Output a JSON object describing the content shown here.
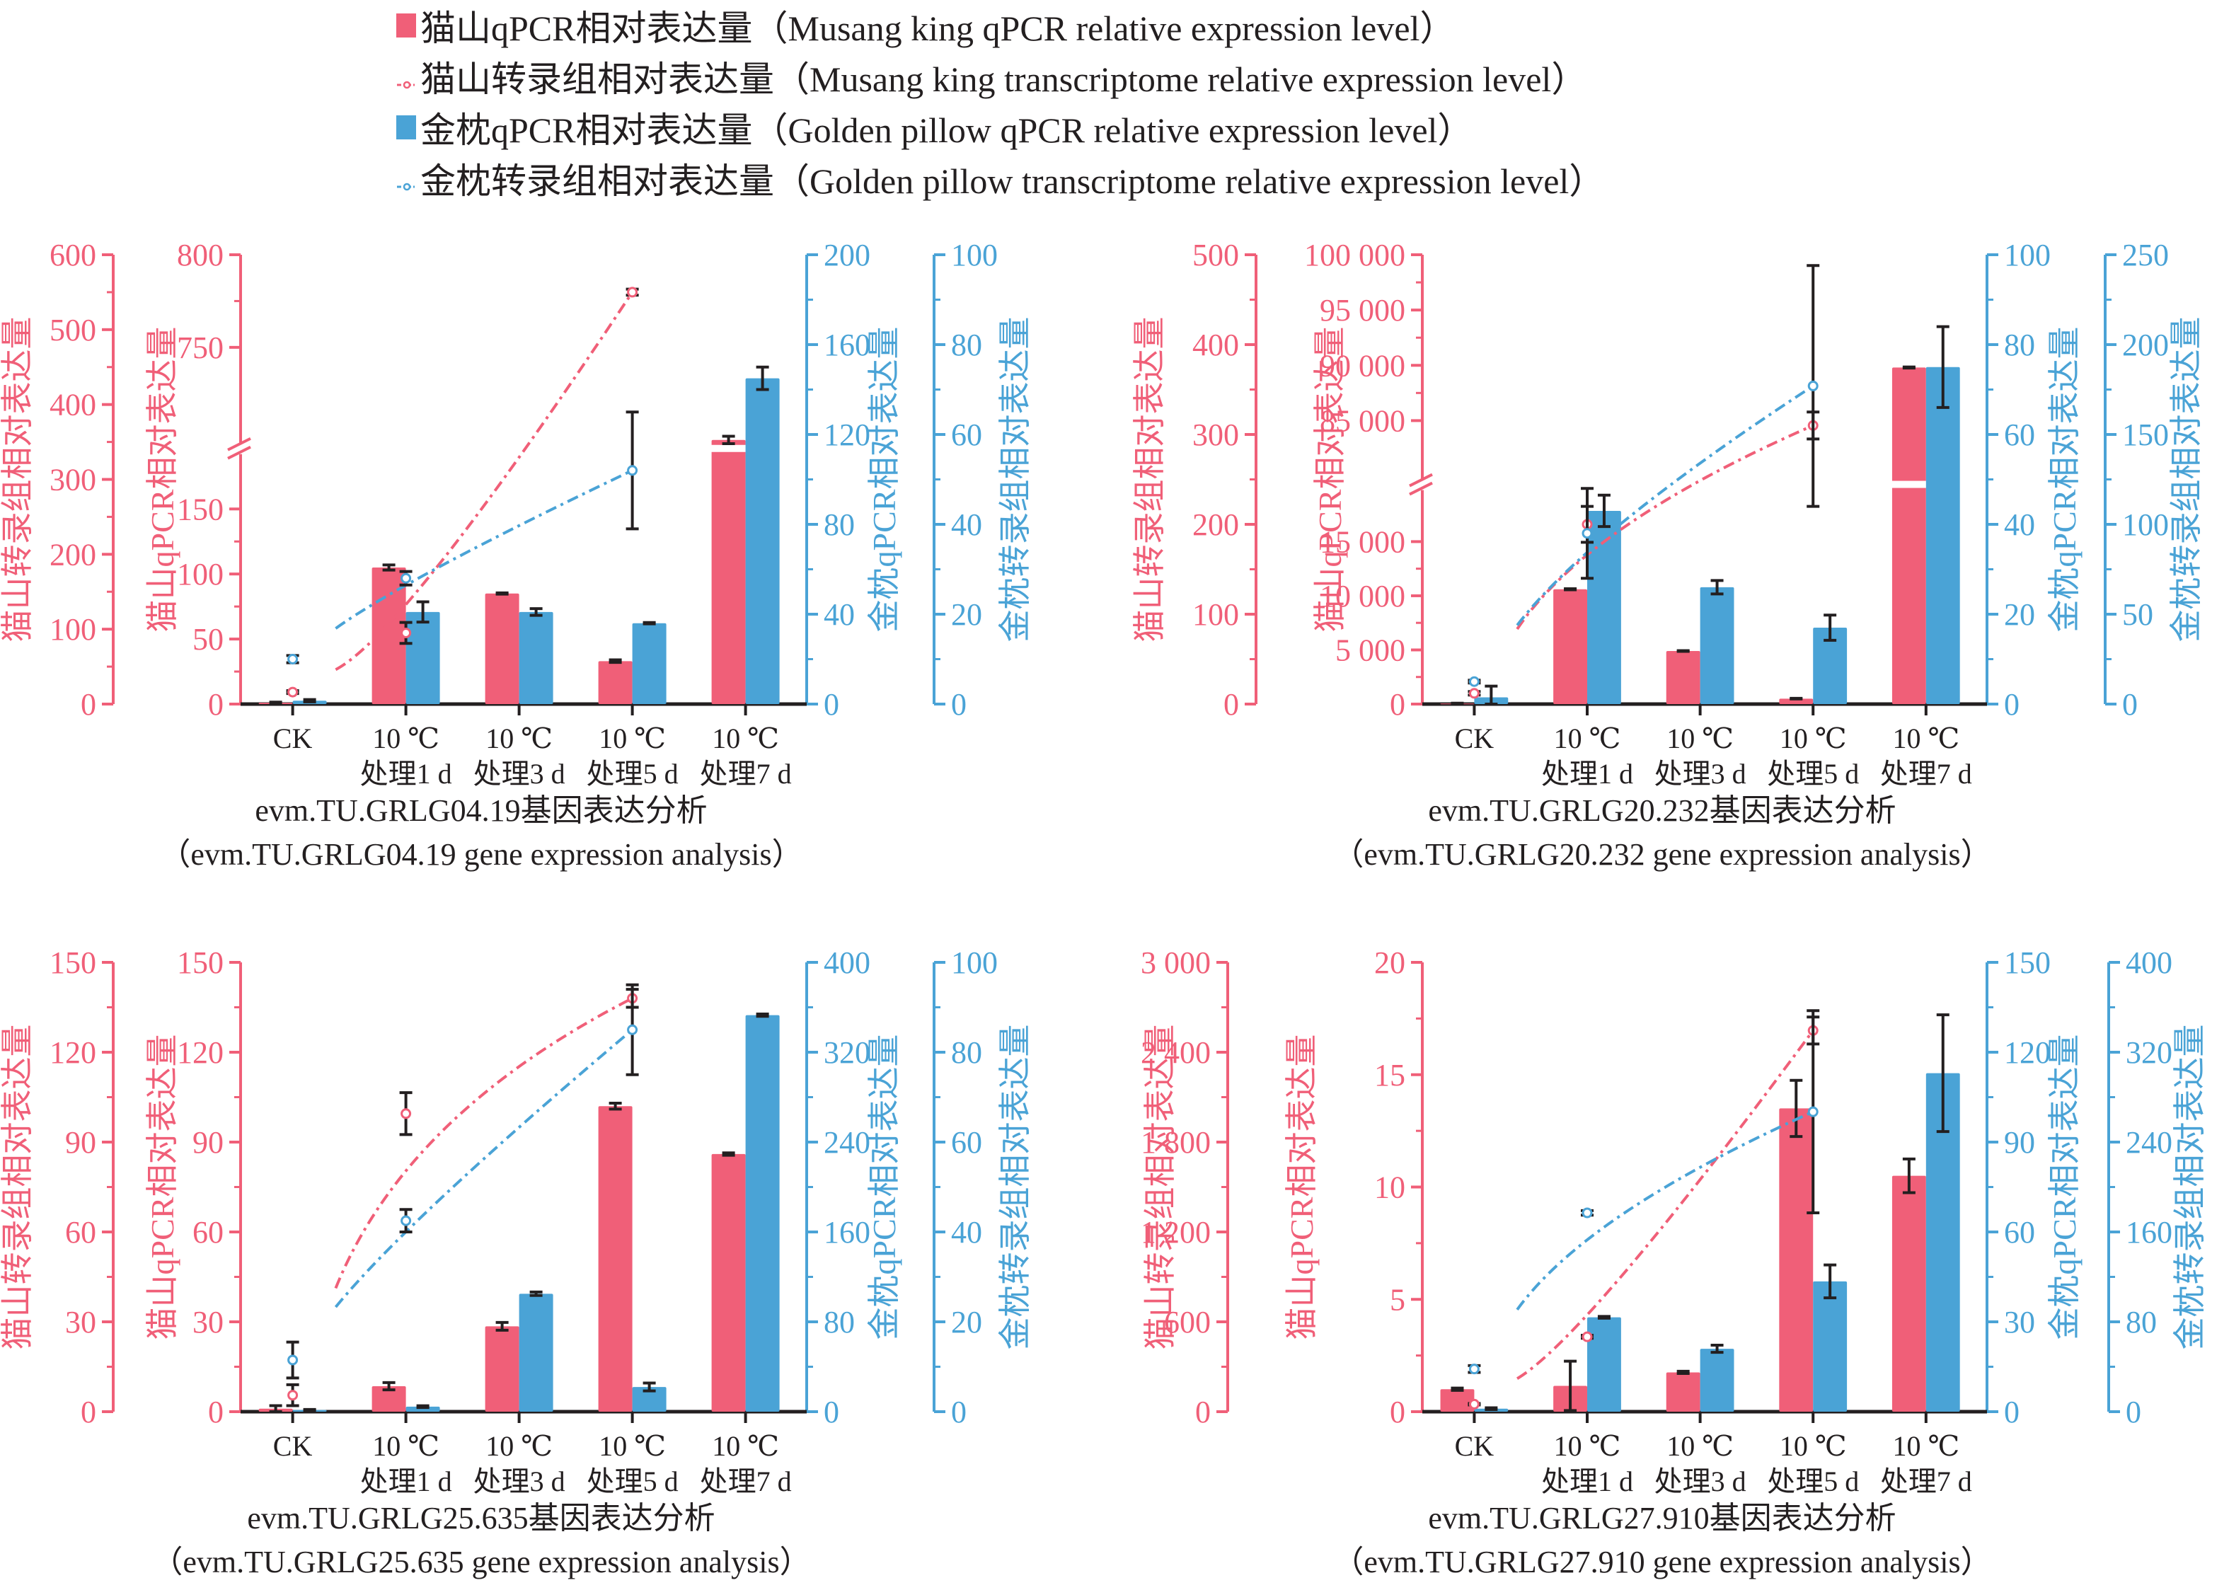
{
  "colors": {
    "musang": "#f05f78",
    "golden": "#4aa3d6",
    "axis_black": "#231f20",
    "errorbar": "#231f20"
  },
  "legend": [
    {
      "kind": "bar",
      "color_key": "musang",
      "label": "猫山qPCR相对表达量（Musang king qPCR relative expression level）"
    },
    {
      "kind": "line",
      "color_key": "musang",
      "label": "猫山转录组相对表达量（Musang king transcriptome relative expression level）"
    },
    {
      "kind": "bar",
      "color_key": "golden",
      "label": "金枕qPCR相对表达量（Golden pillow qPCR relative expression level）"
    },
    {
      "kind": "line",
      "color_key": "golden",
      "label": "金枕转录组相对表达量（Golden pillow transcriptome relative expression level）"
    }
  ],
  "chart_data": [
    {
      "type": "bar",
      "title": "evm.TU.GRLG04.19基因表达分析",
      "subtitle": "（evm.TU.GRLG04.19 gene expression analysis）",
      "categories": [
        [
          "CK",
          ""
        ],
        [
          "10 ℃",
          "处理1 d"
        ],
        [
          "10 ℃",
          "处理3 d"
        ],
        [
          "10 ℃",
          "处理5 d"
        ],
        [
          "10 ℃",
          "处理7 d"
        ]
      ],
      "axes": {
        "mk_transcriptome": {
          "label": "猫山转录组相对表达量",
          "ylim": [
            0,
            600
          ],
          "ticks": [
            "0",
            "100",
            "200",
            "300",
            "400",
            "500",
            "600"
          ]
        },
        "mk_qpcr": {
          "label": "猫山qPCR相对表达量",
          "broken": true,
          "lower_ylim": [
            0,
            190
          ],
          "upper_ylim": [
            700,
            800
          ],
          "ticks_lower": [
            "0",
            "50",
            "100",
            "150"
          ],
          "ticks_upper": [
            "750",
            "800"
          ]
        },
        "gp_qpcr": {
          "label": "金枕qPCR相对表达量",
          "ylim": [
            0,
            200
          ],
          "ticks": [
            "0",
            "40",
            "80",
            "120",
            "160",
            "200"
          ]
        },
        "gp_transcriptome": {
          "label": "金枕转录组相对表达量",
          "ylim": [
            0,
            100
          ],
          "ticks": [
            "0",
            "20",
            "40",
            "60",
            "80",
            "100"
          ]
        }
      },
      "series": [
        {
          "name": "猫山qPCR",
          "type": "bar",
          "axis": "mk_qpcr",
          "values": [
            1,
            105,
            85,
            33,
            700
          ],
          "errors": [
            0.5,
            2,
            0.5,
            1,
            2
          ]
        },
        {
          "name": "金枕qPCR",
          "type": "bar",
          "axis": "gp_qpcr",
          "values": [
            1.5,
            41,
            41,
            36,
            145
          ],
          "errors": [
            0.5,
            4.5,
            1.5,
            0.3,
            5
          ]
        },
        {
          "name": "猫山转录组",
          "type": "line",
          "axis": "mk_transcriptome",
          "values": [
            16,
            95,
            null,
            550,
            null
          ],
          "errors": [
            2,
            14,
            null,
            4,
            null
          ]
        },
        {
          "name": "金枕转录组",
          "type": "line",
          "axis": "gp_transcriptome",
          "values": [
            10,
            28,
            null,
            52,
            null
          ],
          "errors": [
            0.8,
            1.5,
            null,
            13,
            null
          ]
        }
      ]
    },
    {
      "type": "bar",
      "title": "evm.TU.GRLG20.232基因表达分析",
      "subtitle": "（evm.TU.GRLG20.232 gene expression analysis）",
      "categories": [
        [
          "CK",
          ""
        ],
        [
          "10 ℃",
          "处理1 d"
        ],
        [
          "10 ℃",
          "处理3 d"
        ],
        [
          "10 ℃",
          "处理5 d"
        ],
        [
          "10 ℃",
          "处理7 d"
        ]
      ],
      "axes": {
        "mk_transcriptome": {
          "label": "猫山转录组相对表达量",
          "ylim": [
            0,
            500
          ],
          "ticks": [
            "0",
            "100",
            "200",
            "300",
            "400",
            "500"
          ]
        },
        "mk_qpcr": {
          "label": "猫山qPCR相对表达量",
          "broken": true,
          "lower_ylim": [
            0,
            19500
          ],
          "upper_ylim": [
            80000,
            100000
          ],
          "ticks_lower": [
            "0",
            "5 000",
            "10 000",
            "15 000"
          ],
          "ticks_upper": [
            "85 000",
            "90 000",
            "95 000",
            "100 000"
          ]
        },
        "gp_qpcr": {
          "label": "金枕qPCR相对表达量",
          "ylim": [
            0,
            100
          ],
          "ticks": [
            "0",
            "20",
            "40",
            "60",
            "80",
            "100"
          ]
        },
        "gp_transcriptome": {
          "label": "金枕转录组相对表达量",
          "ylim": [
            0,
            250
          ],
          "ticks": [
            "0",
            "50",
            "100",
            "150",
            "200",
            "250"
          ]
        }
      },
      "series": [
        {
          "name": "猫山qPCR",
          "type": "bar",
          "axis": "mk_qpcr",
          "values": [
            50,
            10600,
            4900,
            500,
            89800
          ],
          "errors": [
            30,
            50,
            30,
            30,
            50
          ]
        },
        {
          "name": "金枕qPCR",
          "type": "bar",
          "axis": "gp_qpcr",
          "values": [
            1.5,
            43,
            26,
            17,
            75
          ],
          "errors": [
            2.5,
            3.5,
            1.5,
            2.8,
            9
          ]
        },
        {
          "name": "猫山转录组",
          "type": "line",
          "axis": "mk_transcriptome",
          "values": [
            12,
            200,
            null,
            310,
            null
          ],
          "errors": [
            2,
            20,
            null,
            15,
            null
          ]
        },
        {
          "name": "金枕转录组",
          "type": "line",
          "axis": "gp_transcriptome",
          "values": [
            12.5,
            95,
            null,
            177,
            null
          ],
          "errors": [
            0.8,
            25,
            null,
            67,
            null
          ]
        }
      ]
    },
    {
      "type": "bar",
      "title": "evm.TU.GRLG25.635基因表达分析",
      "subtitle": "（evm.TU.GRLG25.635 gene expression analysis）",
      "categories": [
        [
          "CK",
          ""
        ],
        [
          "10 ℃",
          "处理1 d"
        ],
        [
          "10 ℃",
          "处理3 d"
        ],
        [
          "10 ℃",
          "处理5 d"
        ],
        [
          "10 ℃",
          "处理7 d"
        ]
      ],
      "axes": {
        "mk_transcriptome": {
          "label": "猫山转录组相对表达量",
          "ylim": [
            0,
            150
          ],
          "ticks": [
            "0",
            "30",
            "60",
            "90",
            "120",
            "150"
          ]
        },
        "mk_qpcr": {
          "label": "猫山qPCR相对表达量",
          "ylim": [
            0,
            150
          ],
          "ticks": [
            "0",
            "30",
            "60",
            "90",
            "120",
            "150"
          ]
        },
        "gp_qpcr": {
          "label": "金枕qPCR相对表达量",
          "ylim": [
            0,
            400
          ],
          "ticks": [
            "0",
            "80",
            "160",
            "240",
            "320",
            "400"
          ]
        },
        "gp_transcriptome": {
          "label": "金枕转录组相对表达量",
          "ylim": [
            0,
            100
          ],
          "ticks": [
            "0",
            "20",
            "40",
            "60",
            "80",
            "100"
          ]
        }
      },
      "series": [
        {
          "name": "猫山qPCR",
          "type": "bar",
          "axis": "mk_qpcr",
          "values": [
            1,
            8.5,
            28.5,
            102,
            86
          ],
          "errors": [
            1,
            1.2,
            1.3,
            1,
            0.4
          ]
        },
        {
          "name": "金枕qPCR",
          "type": "bar",
          "axis": "gp_qpcr",
          "values": [
            1.5,
            4.5,
            105,
            22,
            353
          ],
          "errors": [
            0.5,
            0.8,
            1.5,
            3.5,
            1
          ]
        },
        {
          "name": "猫山转录组",
          "type": "line",
          "axis": "mk_transcriptome",
          "values": [
            5.5,
            99.5,
            null,
            138,
            null
          ],
          "errors": [
            3.5,
            7,
            null,
            3,
            null
          ]
        },
        {
          "name": "金枕转录组",
          "type": "line",
          "axis": "gp_transcriptome",
          "values": [
            11.5,
            42.5,
            null,
            85,
            null
          ],
          "errors": [
            4,
            2.5,
            null,
            10,
            null
          ]
        }
      ]
    },
    {
      "type": "bar",
      "title": "evm.TU.GRLG27.910基因表达分析",
      "subtitle": "（evm.TU.GRLG27.910 gene expression analysis）",
      "categories": [
        [
          "CK",
          ""
        ],
        [
          "10 ℃",
          "处理1 d"
        ],
        [
          "10 ℃",
          "处理3 d"
        ],
        [
          "10 ℃",
          "处理5 d"
        ],
        [
          "10 ℃",
          "处理7 d"
        ]
      ],
      "axes": {
        "mk_transcriptome": {
          "label": "猫山转录组相对表达量",
          "ylim": [
            0,
            3000
          ],
          "ticks": [
            "0",
            "600",
            "1 200",
            "1 800",
            "2 400",
            "3 000"
          ]
        },
        "mk_qpcr": {
          "label": "猫山qPCR相对表达量",
          "ylim": [
            0,
            20
          ],
          "ticks": [
            "0",
            "5",
            "10",
            "15",
            "20"
          ]
        },
        "gp_qpcr": {
          "label": "金枕qPCR相对表达量",
          "ylim": [
            0,
            150
          ],
          "ticks": [
            "0",
            "30",
            "60",
            "90",
            "120",
            "150"
          ]
        },
        "gp_transcriptome": {
          "label": "金枕转录组相对表达量",
          "ylim": [
            0,
            400
          ],
          "ticks": [
            "0",
            "80",
            "160",
            "240",
            "320",
            "400"
          ]
        }
      },
      "series": [
        {
          "name": "猫山qPCR",
          "type": "bar",
          "axis": "mk_qpcr",
          "values": [
            1,
            1.15,
            1.75,
            13.5,
            10.5
          ],
          "errors": [
            0.05,
            1.1,
            0.05,
            1.25,
            0.75
          ]
        },
        {
          "name": "金枕qPCR",
          "type": "bar",
          "axis": "gp_qpcr",
          "values": [
            1,
            31.5,
            21,
            43.5,
            113
          ],
          "errors": [
            0.3,
            0.3,
            1.2,
            5.5,
            19.5
          ]
        },
        {
          "name": "猫山转录组",
          "type": "line",
          "axis": "mk_transcriptome",
          "values": [
            50,
            500,
            null,
            2545,
            null
          ],
          "errors": [
            5,
            10,
            null,
            90,
            null
          ]
        },
        {
          "name": "金枕转录组",
          "type": "line",
          "axis": "gp_transcriptome",
          "values": [
            38,
            177,
            null,
            267,
            null
          ],
          "errors": [
            3,
            2,
            null,
            90,
            null
          ]
        }
      ]
    }
  ]
}
